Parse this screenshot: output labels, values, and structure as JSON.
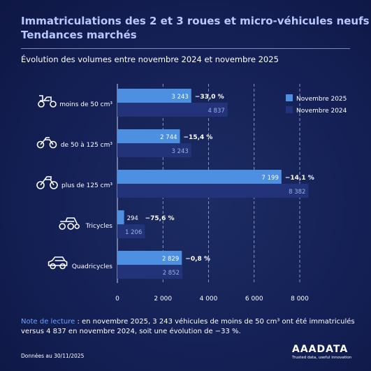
{
  "header": {
    "title_line1": "Immatriculations des 2 et 3 roues et micro-véhicules neufs",
    "title_line2": "Tendances marchés",
    "subtitle": "Évolution des volumes entre novembre 2024 et novembre 2025"
  },
  "chart_data": {
    "type": "bar",
    "orientation": "horizontal",
    "categories": [
      "moins de 50 cm³",
      "de 50 à 125 cm³",
      "plus de 125 cm³",
      "Tricycles",
      "Quadricycles"
    ],
    "category_icons": [
      "scooter-icon",
      "motorcycle-icon",
      "large-motorcycle-icon",
      "tricycle-icon",
      "quadricycle-icon"
    ],
    "series": [
      {
        "name": "Novembre 2025",
        "values": [
          3243,
          2744,
          7199,
          294,
          2829
        ],
        "labels": [
          "3 243",
          "2 744",
          "7 199",
          "294",
          "2 829"
        ],
        "color": "#4d8fe0"
      },
      {
        "name": "Novembre 2024",
        "values": [
          4837,
          3243,
          8382,
          1206,
          2852
        ],
        "labels": [
          "4 837",
          "3 243",
          "8 382",
          "1 206",
          "2 852"
        ],
        "color": "#22337a"
      }
    ],
    "evolution": [
      "−33,0 %",
      "−15,4 %",
      "−14,1 %",
      "−75,6 %",
      "−0,8 %"
    ],
    "xlim": [
      0,
      8000
    ],
    "xticks": [
      0,
      2000,
      4000,
      6000,
      8000
    ],
    "xtick_labels": [
      "0",
      "2 000",
      "4 000",
      "6 000",
      "8 000"
    ],
    "grid": "vertical dashed",
    "legend_position": "top-right"
  },
  "note": {
    "lead": "Note de lecture",
    "text": " : en novembre 2025, 3 243 véhicules de moins de 50 cm³ ont été immatriculés versus 4 837 en novembre 2024, soit une évolution de −33 %."
  },
  "footer": {
    "source": "Données au 30/11/2025",
    "brand": "AAADATA",
    "tagline": "Trusted data, useful innovation"
  }
}
